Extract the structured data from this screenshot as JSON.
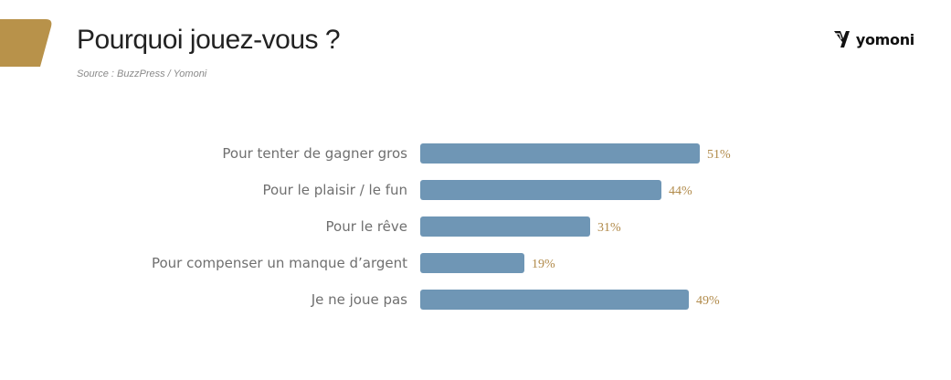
{
  "header": {
    "title": "Pourquoi jouez-vous ?",
    "source": "Source : BuzzPress / Yomoni",
    "brand": "yomoni"
  },
  "colors": {
    "accent": "#b8924a",
    "bar": "#6f96b5",
    "value_label": "#b18a4a",
    "category_label": "#6f6f6f"
  },
  "chart_data": {
    "type": "bar",
    "orientation": "horizontal",
    "title": "Pourquoi jouez-vous ?",
    "categories": [
      "Pour tenter de gagner gros",
      "Pour le plaisir / le fun",
      "Pour le rêve",
      "Pour compenser un manque d’argent",
      "Je ne joue pas"
    ],
    "values": [
      51,
      44,
      31,
      19,
      49
    ],
    "value_labels": [
      "51%",
      "44%",
      "31%",
      "19%",
      "49%"
    ],
    "unit": "%",
    "xlim": [
      0,
      100
    ],
    "grid": false,
    "legend": "none"
  }
}
